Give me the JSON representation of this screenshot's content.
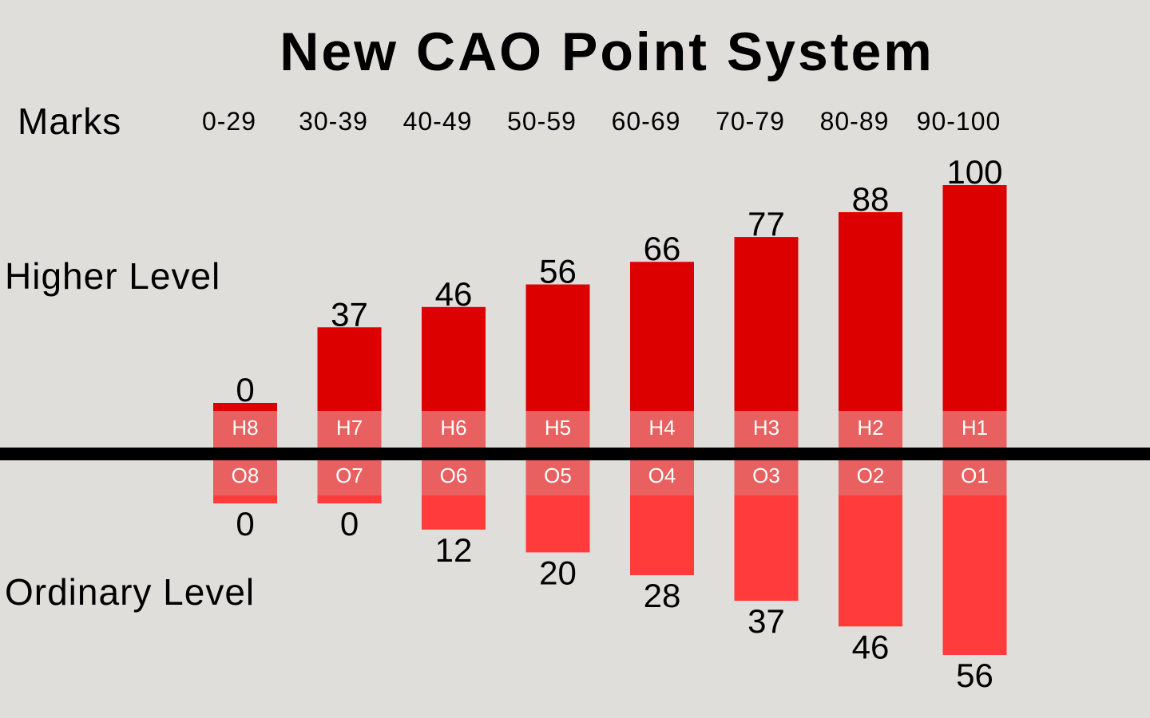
{
  "chart_data": {
    "type": "bar",
    "title": "New CAO Point System",
    "categories_label": "Marks",
    "categories": [
      "0-29",
      "30-39",
      "40-49",
      "50-59",
      "60-69",
      "70-79",
      "80-89",
      "90-100"
    ],
    "series": [
      {
        "name": "Higher Level",
        "grades": [
          "H8",
          "H7",
          "H6",
          "H5",
          "H4",
          "H3",
          "H2",
          "H1"
        ],
        "values": [
          0,
          37,
          46,
          56,
          66,
          77,
          88,
          100
        ]
      },
      {
        "name": "Ordinary Level",
        "grades": [
          "O8",
          "O7",
          "O6",
          "O5",
          "O4",
          "O3",
          "O2",
          "O1"
        ],
        "values": [
          0,
          0,
          12,
          20,
          28,
          37,
          46,
          56
        ]
      }
    ],
    "colors": {
      "higher": "#dd0000",
      "ordinary": "#ff3b3b",
      "grade_band": "#e86060",
      "axis": "#000000",
      "background": "#dfdedb"
    },
    "grid": false
  }
}
